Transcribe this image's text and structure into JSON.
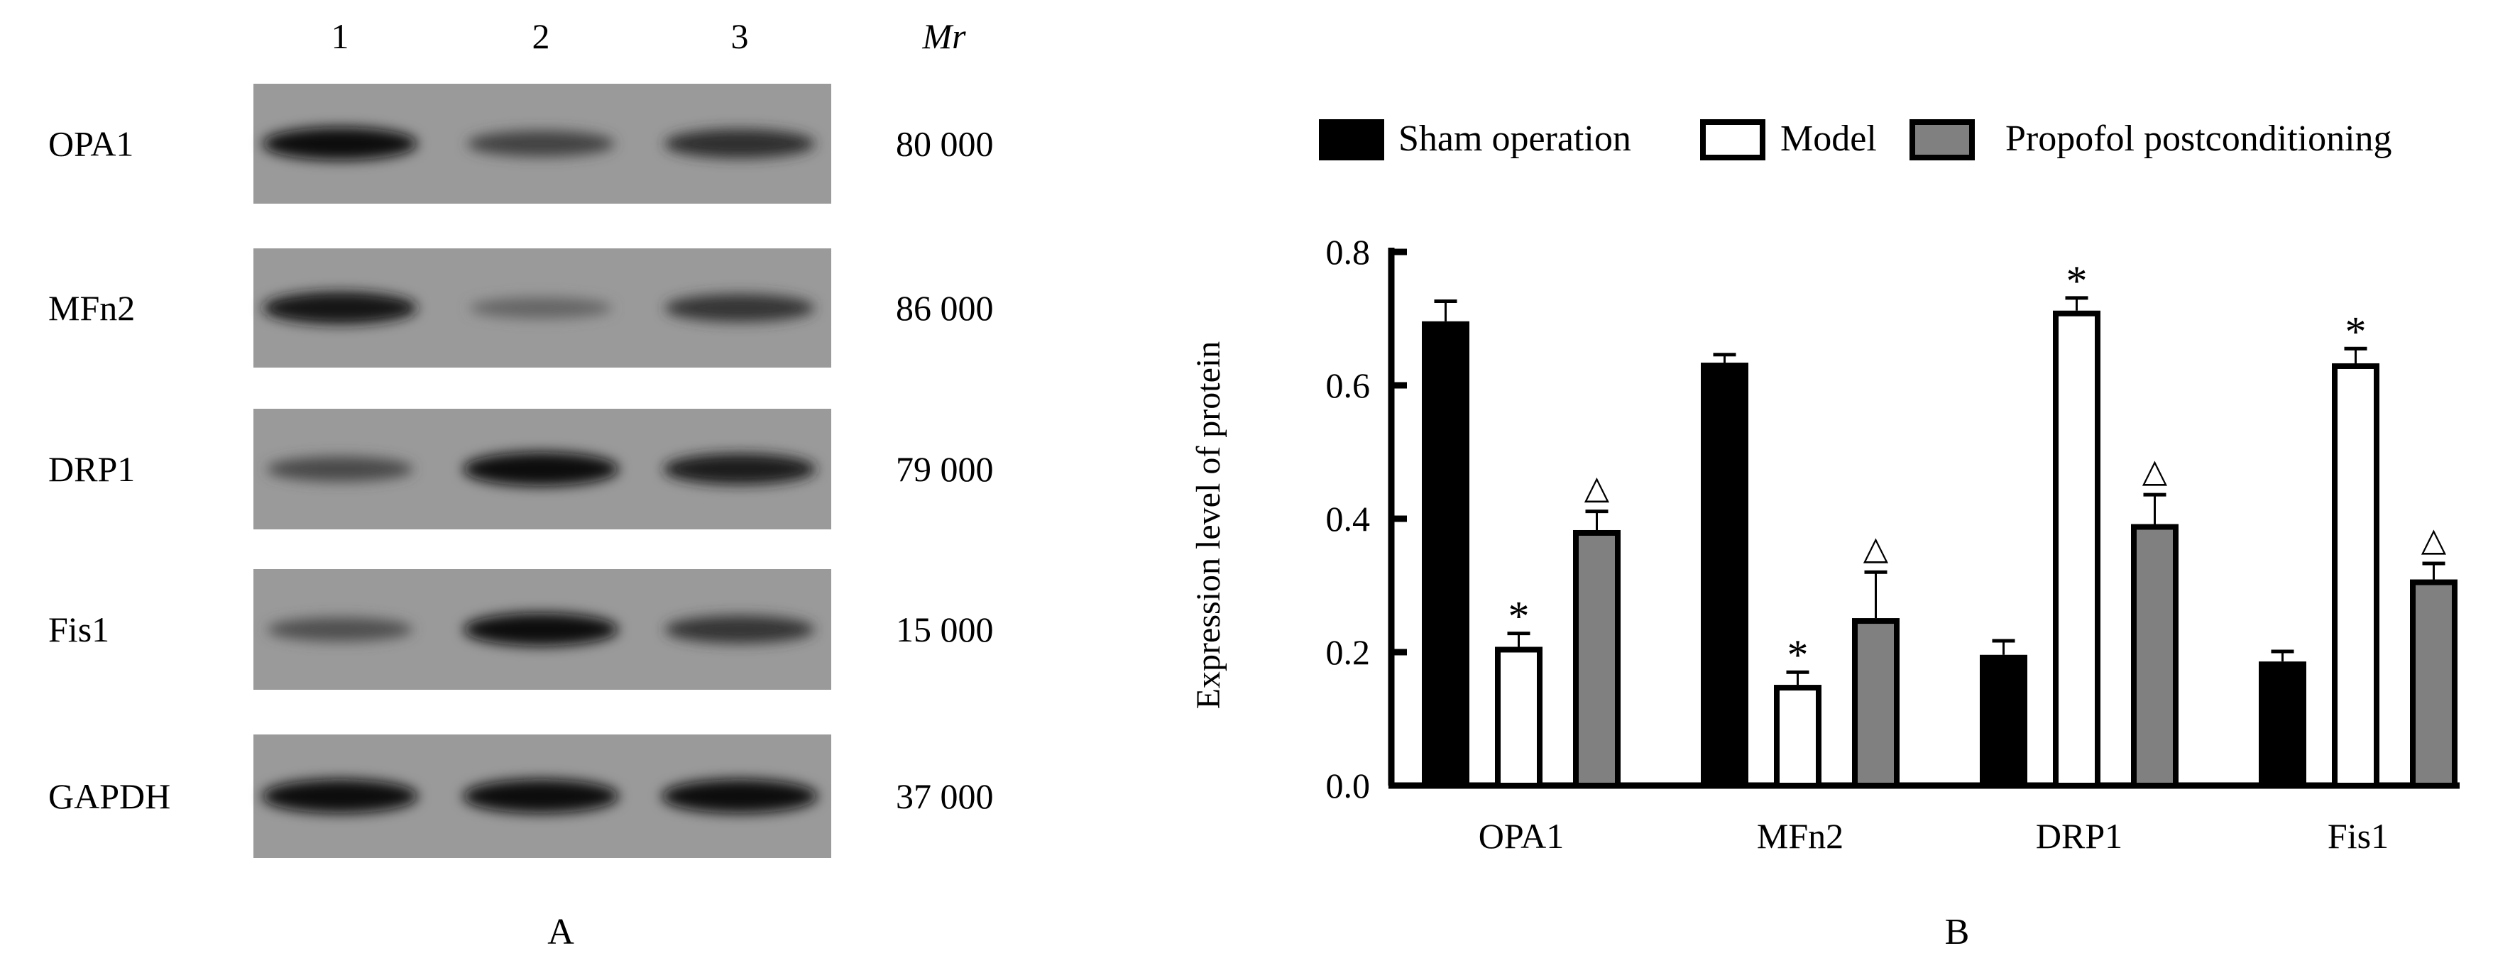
{
  "panel_a": {
    "label": "A",
    "lanes": [
      "1",
      "2",
      "3"
    ],
    "mr_header": "Mr",
    "blot_background": "#9a9a9a",
    "rows": [
      {
        "protein": "OPA1",
        "mr": "80  000",
        "band_intensity": [
          0.95,
          0.6,
          0.75
        ]
      },
      {
        "protein": "MFn2",
        "mr": "86  000",
        "band_intensity": [
          0.92,
          0.35,
          0.7
        ]
      },
      {
        "protein": "DRP1",
        "mr": "79  000",
        "band_intensity": [
          0.55,
          1.0,
          0.85
        ]
      },
      {
        "protein": "Fis1",
        "mr": "15  000",
        "band_intensity": [
          0.5,
          0.95,
          0.7
        ]
      },
      {
        "protein": "GAPDH",
        "mr": "37  000",
        "band_intensity": [
          1.0,
          1.0,
          1.0
        ]
      }
    ]
  },
  "chart_data": {
    "type": "bar",
    "panel_label": "B",
    "categories": [
      "OPA1",
      "MFn2",
      "DRP1",
      "Fis1"
    ],
    "ylabel": "Expression level of protein",
    "xlabel": "",
    "ylim": [
      0,
      0.8
    ],
    "yticks": [
      "0.0",
      "0.2",
      "0.4",
      "0.6",
      "0.8"
    ],
    "grid": false,
    "legend_position": "top",
    "series": [
      {
        "name": "Sham operation",
        "color": "#000000",
        "values": [
          0.696,
          0.634,
          0.196,
          0.186
        ],
        "errors": [
          0.03,
          0.012,
          0.021,
          0.015
        ],
        "markers": [
          "",
          "",
          "",
          ""
        ]
      },
      {
        "name": "Model",
        "color": "#ffffff",
        "values": [
          0.208,
          0.151,
          0.712,
          0.633
        ],
        "errors": [
          0.02,
          0.019,
          0.019,
          0.022
        ],
        "markers": [
          "*",
          "*",
          "*",
          "*"
        ]
      },
      {
        "name": "Propofol postconditioning",
        "color": "#808080",
        "values": [
          0.383,
          0.251,
          0.392,
          0.309
        ],
        "errors": [
          0.028,
          0.069,
          0.044,
          0.024
        ],
        "markers": [
          "△",
          "△",
          "△",
          "△"
        ]
      }
    ]
  }
}
